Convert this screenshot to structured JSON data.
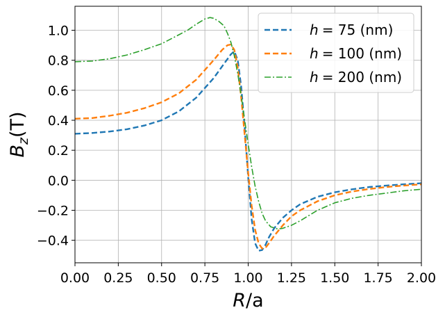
{
  "chart_data": {
    "type": "line",
    "title": "",
    "xlabel": {
      "var": "R",
      "rest": "/a"
    },
    "ylabel": {
      "var": "B",
      "sub": "z",
      "rest": "(T)"
    },
    "xlim": [
      0,
      2
    ],
    "ylim": [
      -0.55,
      1.16
    ],
    "xticks": [
      0,
      0.25,
      0.5,
      0.75,
      1.0,
      1.25,
      1.5,
      1.75,
      2.0
    ],
    "xtick_labels": [
      "0.00",
      "0.25",
      "0.50",
      "0.75",
      "1.00",
      "1.25",
      "1.50",
      "1.75",
      "2.00"
    ],
    "yticks": [
      -0.4,
      -0.2,
      0.0,
      0.2,
      0.4,
      0.6,
      0.8,
      1.0
    ],
    "ytick_labels": [
      "−0.4",
      "−0.2",
      "0.0",
      "0.2",
      "0.4",
      "0.6",
      "0.8",
      "1.0"
    ],
    "grid": true,
    "legend_position": "top-right",
    "series": [
      {
        "name": "h = 75 (nm)",
        "legend_var": "h",
        "legend_value": "= 75 (nm)",
        "color": "#1f77b4",
        "style": "dashed",
        "x": [
          0,
          0.1,
          0.2,
          0.3,
          0.4,
          0.5,
          0.6,
          0.7,
          0.8,
          0.85,
          0.9,
          0.92,
          0.94,
          0.96,
          0.98,
          1.0,
          1.02,
          1.04,
          1.06,
          1.08,
          1.1,
          1.12,
          1.15,
          1.2,
          1.25,
          1.3,
          1.4,
          1.5,
          1.6,
          1.7,
          1.8,
          1.9,
          2.0
        ],
        "y": [
          0.31,
          0.315,
          0.325,
          0.34,
          0.365,
          0.4,
          0.46,
          0.55,
          0.68,
          0.76,
          0.84,
          0.86,
          0.8,
          0.62,
          0.35,
          0.02,
          -0.26,
          -0.42,
          -0.47,
          -0.465,
          -0.43,
          -0.38,
          -0.32,
          -0.25,
          -0.2,
          -0.16,
          -0.11,
          -0.08,
          -0.06,
          -0.045,
          -0.035,
          -0.027,
          -0.02
        ]
      },
      {
        "name": "h = 100 (nm)",
        "legend_var": "h",
        "legend_value": "= 100 (nm)",
        "color": "#ff7f0e",
        "style": "dashed",
        "x": [
          0,
          0.1,
          0.2,
          0.3,
          0.4,
          0.5,
          0.6,
          0.7,
          0.8,
          0.85,
          0.88,
          0.9,
          0.92,
          0.94,
          0.96,
          0.98,
          1.0,
          1.02,
          1.04,
          1.06,
          1.08,
          1.1,
          1.12,
          1.15,
          1.2,
          1.25,
          1.3,
          1.4,
          1.5,
          1.6,
          1.7,
          1.8,
          1.9,
          2.0
        ],
        "y": [
          0.41,
          0.415,
          0.43,
          0.45,
          0.48,
          0.52,
          0.58,
          0.67,
          0.8,
          0.87,
          0.9,
          0.905,
          0.87,
          0.75,
          0.55,
          0.3,
          0.05,
          -0.17,
          -0.33,
          -0.42,
          -0.455,
          -0.45,
          -0.42,
          -0.37,
          -0.3,
          -0.24,
          -0.2,
          -0.14,
          -0.1,
          -0.075,
          -0.058,
          -0.045,
          -0.035,
          -0.027
        ]
      },
      {
        "name": "h = 200 (nm)",
        "legend_var": "h",
        "legend_value": "= 200 (nm)",
        "color": "#2ca02c",
        "style": "dashdot",
        "x": [
          0,
          0.1,
          0.2,
          0.3,
          0.4,
          0.5,
          0.6,
          0.65,
          0.7,
          0.75,
          0.78,
          0.8,
          0.83,
          0.86,
          0.88,
          0.9,
          0.92,
          0.94,
          0.96,
          0.98,
          1.0,
          1.02,
          1.04,
          1.06,
          1.08,
          1.1,
          1.13,
          1.17,
          1.2,
          1.25,
          1.3,
          1.4,
          1.5,
          1.6,
          1.7,
          1.8,
          1.9,
          2.0
        ],
        "y": [
          0.79,
          0.795,
          0.81,
          0.835,
          0.87,
          0.91,
          0.97,
          1.0,
          1.04,
          1.075,
          1.085,
          1.08,
          1.06,
          1.03,
          0.98,
          0.92,
          0.83,
          0.71,
          0.56,
          0.4,
          0.24,
          0.09,
          -0.04,
          -0.14,
          -0.22,
          -0.27,
          -0.31,
          -0.325,
          -0.32,
          -0.3,
          -0.27,
          -0.2,
          -0.15,
          -0.12,
          -0.1,
          -0.085,
          -0.07,
          -0.06
        ]
      }
    ]
  }
}
